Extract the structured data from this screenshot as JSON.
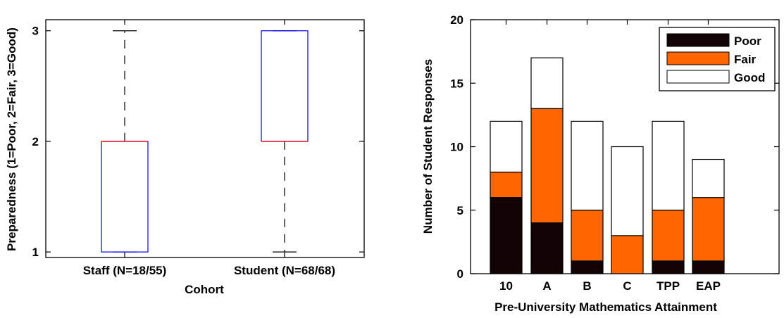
{
  "chart_data": [
    {
      "type": "box",
      "xlabel": "Cohort",
      "ylabel": "Preparedness (1=Poor, 2=Fair, 3=Good)",
      "ylim": [
        0.95,
        3.1
      ],
      "yticks": [
        1,
        2,
        3
      ],
      "categories": [
        "Staff (N=18/55)",
        "Student (N=68/68)"
      ],
      "boxes": [
        {
          "category": "Staff (N=18/55)",
          "min": 1,
          "q1": 1,
          "median": 2,
          "q3": 2,
          "max": 3
        },
        {
          "category": "Student (N=68/68)",
          "min": 1,
          "q1": 2,
          "median": 2,
          "q3": 3,
          "max": 3
        }
      ],
      "colors": {
        "box": "#0000ff",
        "median": "#ff0000",
        "whisker": "#000000"
      }
    },
    {
      "type": "bar",
      "stacked": true,
      "xlabel": "Pre-University Mathematics Attainment",
      "ylabel": "Number of Student Responses",
      "ylim": [
        0,
        20
      ],
      "yticks": [
        0,
        5,
        10,
        15,
        20
      ],
      "categories": [
        "10",
        "A",
        "B",
        "C",
        "TPP",
        "EAP"
      ],
      "series": [
        {
          "name": "Poor",
          "color": "#120404",
          "values": [
            6,
            4,
            1,
            0,
            1,
            1
          ]
        },
        {
          "name": "Fair",
          "color": "#ff6600",
          "values": [
            2,
            9,
            4,
            3,
            4,
            5
          ]
        },
        {
          "name": "Good",
          "color": "#ffffff",
          "values": [
            4,
            4,
            7,
            7,
            7,
            3
          ]
        }
      ],
      "legend": "top-right"
    }
  ]
}
